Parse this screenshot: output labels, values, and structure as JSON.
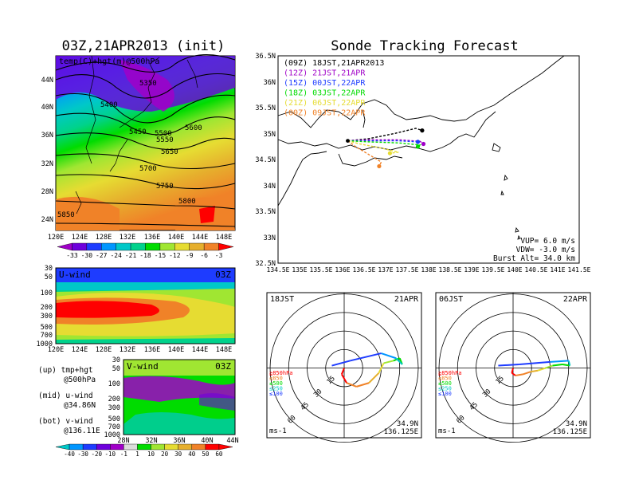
{
  "left": {
    "main_title": "03Z,21APR2013 (init)",
    "map": {
      "label": "temp(C)+hgt(m)@500hPa",
      "lat_ticks": [
        "44N",
        "40N",
        "36N",
        "32N",
        "28N",
        "24N"
      ],
      "lon_ticks": [
        "120E",
        "124E",
        "128E",
        "132E",
        "136E",
        "140E",
        "144E",
        "148E"
      ],
      "contours": [
        "5350",
        "5400",
        "5450",
        "5500",
        "5550",
        "5600",
        "5650",
        "5700",
        "5750",
        "5800",
        "5850"
      ]
    },
    "temp_colorbar": {
      "labels": [
        "-33",
        "-30",
        "-27",
        "-24",
        "-21",
        "-18",
        "-15",
        "-12",
        "-9",
        "-6",
        "-3"
      ],
      "colors": [
        "#a000c8",
        "#6e00dc",
        "#1e3cff",
        "#0096ff",
        "#00c8c8",
        "#00d28c",
        "#00dc00",
        "#a0e632",
        "#e6dc32",
        "#e6af2d",
        "#f08228",
        "#ff0000"
      ]
    },
    "uwind": {
      "label": "U-wind",
      "time": "03Z",
      "p_ticks": [
        "30",
        "50",
        "100",
        "200",
        "300",
        "500",
        "700",
        "1000"
      ],
      "lon_ticks": [
        "120E",
        "124E",
        "128E",
        "132E",
        "136E",
        "140E",
        "144E",
        "148E"
      ]
    },
    "vwind": {
      "label": "V-wind",
      "time": "03Z",
      "p_ticks": [
        "30",
        "50",
        "100",
        "200",
        "300",
        "500",
        "700",
        "1000"
      ],
      "lat_ticks": [
        "28N",
        "32N",
        "36N",
        "40N",
        "44N"
      ]
    },
    "notes": [
      {
        "a": "(up) tmp+hgt",
        "b": "@500hPa"
      },
      {
        "a": "(mid) u-wind",
        "b": "@34.86N"
      },
      {
        "a": "(bot) v-wind",
        "b": "@136.11E"
      }
    ],
    "wind_colorbar": {
      "labels": [
        "-40",
        "-30",
        "-20",
        "-10",
        "-1",
        "1",
        "10",
        "20",
        "30",
        "40",
        "50",
        "60"
      ],
      "colors": [
        "#00c8c8",
        "#0096ff",
        "#1e3cff",
        "#6e00dc",
        "#a000c8",
        "#dcdcdc",
        "#00dc00",
        "#a0e632",
        "#e6dc32",
        "#e6af2d",
        "#f08228",
        "#ff0000",
        "#ff0000"
      ]
    }
  },
  "right": {
    "title": "Sonde Tracking Forecast",
    "legend": [
      {
        "label": "(09Z)  18JST,21APR2013",
        "color": "#000000"
      },
      {
        "label": "(12Z)  21JST,21APR",
        "color": "#a000c8"
      },
      {
        "label": "(15Z)  00JST,22APR",
        "color": "#1e3cff"
      },
      {
        "label": "(18Z)  03JST,22APR",
        "color": "#00dc00"
      },
      {
        "label": "(21Z)  06JST,22APR",
        "color": "#e6dc32"
      },
      {
        "label": "(00Z)  09JST,22APR",
        "color": "#f08228"
      }
    ],
    "lat_ticks": [
      "36.5N",
      "36N",
      "35.5N",
      "35N",
      "34.5N",
      "34N",
      "33.5N",
      "33N",
      "32.5N"
    ],
    "lon_ticks": [
      "134.5E",
      "135E",
      "135.5E",
      "136E",
      "136.5E",
      "137E",
      "137.5E",
      "138E",
      "138.5E",
      "139E",
      "139.5E",
      "140E",
      "140.5E",
      "141E",
      "141.5E"
    ],
    "params": [
      "VUP=  6.0 m/s",
      "VDW= -3.0 m/s",
      "Burst Alt= 34.0 km"
    ]
  },
  "chart_data": [
    {
      "type": "line",
      "title": "Sonde Tracking Forecast",
      "xlabel": "",
      "ylabel": "",
      "xlim": [
        134.5,
        141.5
      ],
      "ylim": [
        32.5,
        36.5
      ],
      "series": [
        {
          "name": "(09Z)  18JST,21APR2013",
          "points": [
            [
              136.12,
              34.86
            ],
            [
              136.6,
              34.9
            ],
            [
              137.2,
              35.0
            ],
            [
              137.7,
              35.1
            ],
            [
              137.85,
              35.06
            ]
          ]
        },
        {
          "name": "(12Z)  21JST,21APR",
          "points": [
            [
              136.12,
              34.86
            ],
            [
              136.6,
              34.88
            ],
            [
              137.3,
              34.88
            ],
            [
              137.8,
              34.85
            ],
            [
              137.88,
              34.8
            ]
          ]
        },
        {
          "name": "(15Z)  00JST,22APR",
          "points": [
            [
              136.12,
              34.86
            ],
            [
              136.6,
              34.86
            ],
            [
              137.3,
              34.86
            ],
            [
              137.75,
              34.84
            ]
          ]
        },
        {
          "name": "(18Z)  03JST,22APR",
          "points": [
            [
              136.12,
              34.86
            ],
            [
              136.6,
              34.84
            ],
            [
              137.3,
              34.82
            ],
            [
              137.8,
              34.78
            ],
            [
              137.75,
              34.75
            ]
          ]
        },
        {
          "name": "(21Z)  06JST,22APR",
          "points": [
            [
              136.12,
              34.86
            ],
            [
              136.4,
              34.8
            ],
            [
              136.9,
              34.72
            ],
            [
              137.3,
              34.64
            ],
            [
              137.1,
              34.62
            ]
          ]
        },
        {
          "name": "(00Z)  09JST,22APR",
          "points": [
            [
              136.12,
              34.86
            ],
            [
              136.3,
              34.75
            ],
            [
              136.6,
              34.6
            ],
            [
              136.9,
              34.45
            ],
            [
              136.85,
              34.37
            ]
          ]
        }
      ]
    },
    {
      "type": "line",
      "title": "18JST 21APR",
      "center": "34.9N 136.125E",
      "units": "ms-1",
      "radial_labels": [
        "15",
        "30",
        "45",
        "60"
      ],
      "level_labels": [
        "≧850hPa",
        "≤850",
        "≤500",
        "≤250",
        "≤100"
      ],
      "series": [
        {
          "points": [
            [
              0,
              0
            ],
            [
              -2,
              -5
            ],
            [
              2,
              -12
            ],
            [
              10,
              -15
            ],
            [
              20,
              -12
            ],
            [
              28,
              -4
            ],
            [
              32,
              4
            ],
            [
              40,
              6
            ],
            [
              45,
              8
            ],
            [
              47,
              3
            ],
            [
              42,
              8
            ],
            [
              30,
              12
            ],
            [
              5,
              6
            ],
            [
              -10,
              2
            ]
          ]
        }
      ]
    },
    {
      "type": "line",
      "title": "06JST 22APR",
      "center": "34.9N 136.125E",
      "units": "ms-1",
      "radial_labels": [
        "15",
        "30",
        "45",
        "60"
      ],
      "level_labels": [
        "≧850hPa",
        "≤850",
        "≤500",
        "≤250",
        "≤100"
      ],
      "series": [
        {
          "points": [
            [
              0,
              0
            ],
            [
              -1,
              -4
            ],
            [
              2,
              -6
            ],
            [
              8,
              -5
            ],
            [
              14,
              -3
            ],
            [
              20,
              -2
            ],
            [
              26,
              0
            ],
            [
              32,
              2
            ],
            [
              40,
              3
            ],
            [
              46,
              2
            ],
            [
              45,
              6
            ],
            [
              30,
              5
            ],
            [
              5,
              3
            ],
            [
              -12,
              2
            ]
          ]
        }
      ]
    }
  ]
}
